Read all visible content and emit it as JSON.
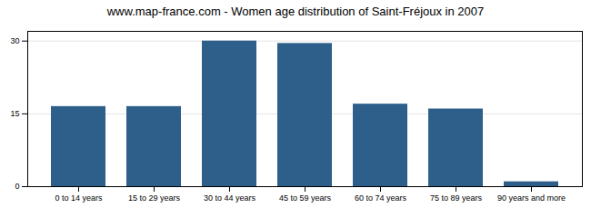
{
  "chart_data": {
    "type": "bar",
    "title": "www.map-france.com - Women age distribution of Saint-Fréjoux in 2007",
    "categories": [
      "0 to 14 years",
      "15 to 29 years",
      "30 to 44 years",
      "45 to 59 years",
      "60 to 74 years",
      "75 to 89 years",
      "90 years and more"
    ],
    "values": [
      16.5,
      16.5,
      30.0,
      29.5,
      17.0,
      16.0,
      1.0
    ],
    "color": "#2e5f8a",
    "ylim": [
      0,
      32
    ],
    "yticks": [
      0,
      15,
      30
    ],
    "grid": true
  }
}
